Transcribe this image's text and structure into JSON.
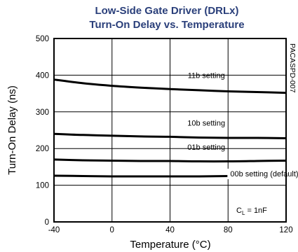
{
  "chart_data": {
    "type": "line",
    "title": "Low-Side Gate Driver (DRLx)",
    "subtitle": "Turn-On Delay vs. Temperature",
    "xlabel": "Temperature (°C)",
    "ylabel": "Turn-On Delay (ns)",
    "xlim": [
      -40,
      120
    ],
    "ylim": [
      0,
      500
    ],
    "xticks": [
      -40,
      0,
      40,
      80,
      120
    ],
    "yticks": [
      0,
      100,
      200,
      300,
      400,
      500
    ],
    "grid": true,
    "annotation": "C_L = 1nF",
    "side_text": "PACASPD-007",
    "series": [
      {
        "name": "11b setting",
        "x": [
          -40,
          -20,
          0,
          20,
          40,
          60,
          80,
          100,
          120
        ],
        "y": [
          388,
          378,
          371,
          366,
          362,
          359,
          356,
          354,
          352
        ]
      },
      {
        "name": "10b setting",
        "x": [
          -40,
          -20,
          0,
          20,
          40,
          60,
          80,
          100,
          120
        ],
        "y": [
          240,
          237,
          235,
          233,
          232,
          230,
          229,
          229,
          228
        ]
      },
      {
        "name": "01b setting",
        "x": [
          -40,
          -20,
          0,
          20,
          40,
          60,
          80,
          100,
          120
        ],
        "y": [
          170,
          168,
          167,
          166,
          166,
          165,
          165,
          166,
          167
        ]
      },
      {
        "name": "00b setting (default)",
        "x": [
          -40,
          -20,
          0,
          20,
          40,
          60,
          80,
          100,
          120
        ],
        "y": [
          126,
          125,
          124,
          124,
          124,
          124,
          125,
          125,
          126
        ]
      }
    ]
  }
}
